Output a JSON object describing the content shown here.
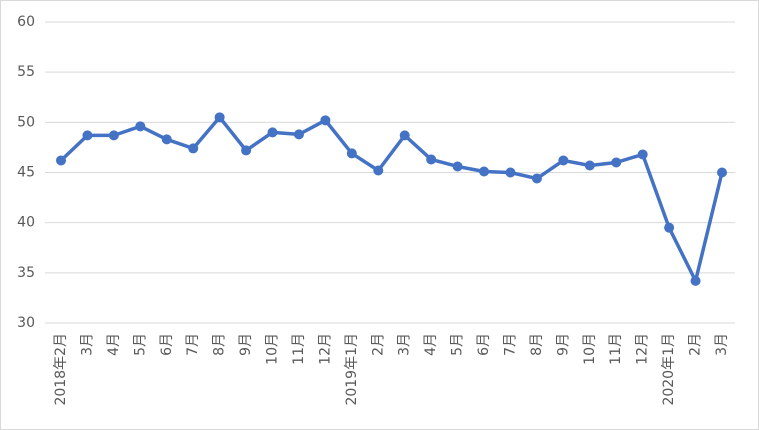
{
  "chart_data": {
    "type": "line",
    "categories": [
      "2018年2月",
      "3月",
      "4月",
      "5月",
      "6月",
      "7月",
      "8月",
      "9月",
      "10月",
      "11月",
      "12月",
      "2019年1月",
      "2月",
      "3月",
      "4月",
      "5月",
      "6月",
      "7月",
      "8月",
      "9月",
      "10月",
      "11月",
      "12月",
      "2020年1月",
      "2月",
      "3月"
    ],
    "values": [
      46.2,
      48.7,
      48.7,
      49.6,
      48.3,
      47.4,
      50.5,
      47.2,
      49.0,
      48.8,
      50.2,
      46.9,
      45.2,
      48.7,
      46.3,
      45.6,
      45.1,
      45.0,
      44.4,
      46.2,
      45.7,
      46.0,
      46.8,
      39.5,
      34.2,
      45.0
    ],
    "color": "#4472c4",
    "ylim": [
      30,
      60
    ],
    "yticks": [
      30,
      35,
      40,
      45,
      50,
      55,
      60
    ],
    "grid": true
  }
}
